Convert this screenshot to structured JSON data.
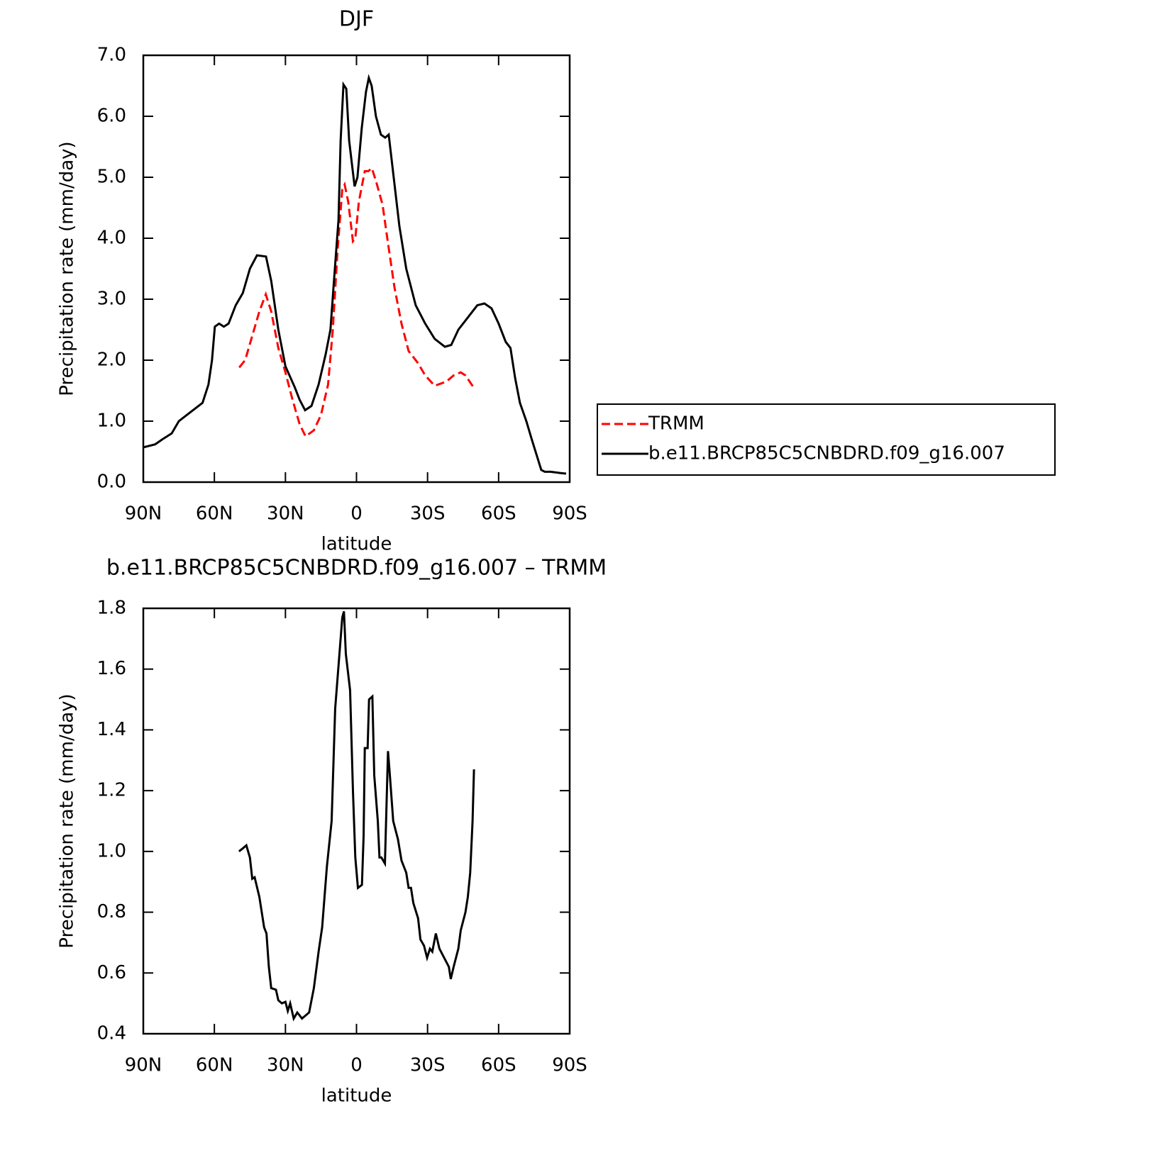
{
  "chart_data": [
    {
      "type": "line",
      "title": "DJF",
      "xlabel": "latitude",
      "ylabel": "Precipitation rate (mm/day)",
      "xlim": [
        90,
        -90
      ],
      "xticks": [
        {
          "value": 90,
          "label": "90N"
        },
        {
          "value": 60,
          "label": "60N"
        },
        {
          "value": 30,
          "label": "30N"
        },
        0,
        {
          "value": -30,
          "label": "30S"
        },
        {
          "value": -60,
          "label": "60S"
        },
        {
          "value": -90,
          "label": "90S"
        }
      ],
      "ylim": [
        0,
        7
      ],
      "yticks": [
        {
          "value": 0,
          "label": "0.0"
        },
        {
          "value": 1,
          "label": "1.0"
        },
        {
          "value": 2,
          "label": "2.0"
        },
        {
          "value": 3,
          "label": "3.0"
        },
        {
          "value": 4,
          "label": "4.0"
        },
        {
          "value": 5,
          "label": "5.0"
        },
        {
          "value": 6,
          "label": "6.0"
        },
        {
          "value": 7,
          "label": "7.0"
        }
      ],
      "legend": "right",
      "series": [
        {
          "name": "TRMM",
          "color": "#ff0000",
          "dash": true,
          "x": [
            49.5,
            47,
            44,
            41,
            38.3,
            36,
            33,
            30,
            27,
            24,
            21.5,
            18,
            15,
            12,
            10,
            8,
            6,
            5,
            3.5,
            1.5,
            0.5,
            -1,
            -3.5,
            -5,
            -6.5,
            -8.5,
            -11,
            -13,
            -16,
            -19,
            -22,
            -26,
            -29,
            -33,
            -38,
            -41,
            -44,
            -46,
            -49.5
          ],
          "values": [
            1.88,
            2.0,
            2.4,
            2.8,
            3.08,
            2.8,
            2.2,
            1.8,
            1.35,
            0.95,
            0.75,
            0.85,
            1.1,
            1.6,
            2.5,
            3.8,
            4.8,
            4.88,
            4.6,
            3.95,
            4.0,
            4.6,
            5.1,
            5.1,
            5.15,
            4.9,
            4.55,
            4.0,
            3.2,
            2.6,
            2.15,
            1.95,
            1.75,
            1.58,
            1.65,
            1.75,
            1.8,
            1.75,
            1.55
          ]
        },
        {
          "name": "b.e11.BRCP85C5CNBDRD.f09_g16.007",
          "color": "#000000",
          "dash": false,
          "x": [
            90,
            85,
            82,
            78,
            75,
            70,
            65,
            62.5,
            61,
            59.8,
            58,
            56,
            54,
            51,
            48,
            45,
            42,
            38.2,
            36,
            33,
            30,
            26,
            24,
            21.7,
            19,
            16,
            13,
            11,
            9.7,
            7.6,
            6.7,
            5.5,
            4.3,
            3.1,
            0.8,
            -0.4,
            -2.2,
            -4,
            -5.2,
            -6.4,
            -8.2,
            -10.3,
            -12.1,
            -13.6,
            -15.7,
            -18.1,
            -21,
            -25,
            -29,
            -33,
            -37.3,
            -40,
            -43,
            -47,
            -51,
            -54,
            -57,
            -60,
            -63,
            -65,
            -67,
            -69,
            -71.7,
            -74,
            -76,
            -78,
            -79.5,
            -82,
            -86,
            -88.5
          ],
          "values": [
            0.57,
            0.62,
            0.7,
            0.8,
            1.0,
            1.15,
            1.3,
            1.6,
            2.0,
            2.55,
            2.6,
            2.55,
            2.6,
            2.9,
            3.1,
            3.5,
            3.72,
            3.7,
            3.3,
            2.5,
            1.9,
            1.55,
            1.35,
            1.18,
            1.25,
            1.6,
            2.1,
            2.5,
            3.2,
            4.3,
            5.6,
            6.52,
            6.45,
            5.6,
            4.85,
            5.0,
            5.8,
            6.4,
            6.63,
            6.5,
            6.0,
            5.7,
            5.65,
            5.7,
            5.0,
            4.2,
            3.5,
            2.9,
            2.6,
            2.35,
            2.22,
            2.25,
            2.5,
            2.7,
            2.9,
            2.93,
            2.85,
            2.6,
            2.3,
            2.2,
            1.7,
            1.3,
            1.0,
            0.7,
            0.45,
            0.2,
            0.17,
            0.17,
            0.15,
            0.14
          ]
        }
      ]
    },
    {
      "type": "line",
      "title": "b.e11.BRCP85C5CNBDRD.f09_g16.007 – TRMM",
      "xlabel": "latitude",
      "ylabel": "Precipitation rate (mm/day)",
      "xlim": [
        90,
        -90
      ],
      "xticks": [
        {
          "value": 90,
          "label": "90N"
        },
        {
          "value": 60,
          "label": "60N"
        },
        {
          "value": 30,
          "label": "30N"
        },
        0,
        {
          "value": -30,
          "label": "30S"
        },
        {
          "value": -60,
          "label": "60S"
        },
        {
          "value": -90,
          "label": "90S"
        }
      ],
      "ylim": [
        0.4,
        1.8
      ],
      "yticks": [
        0.4,
        0.6,
        0.8,
        {
          "value": 1,
          "label": "1.0"
        },
        1.2,
        1.4,
        1.6,
        1.8
      ],
      "series": [
        {
          "color": "#000000",
          "dash": false,
          "x": [
            49.6,
            48,
            46.5,
            45,
            44,
            43,
            41,
            39,
            38,
            37,
            36,
            34,
            33,
            31.5,
            30,
            29,
            28,
            26.5,
            25,
            23,
            21.5,
            20,
            18,
            16,
            14.5,
            12.5,
            10.5,
            9,
            7.5,
            6,
            5.3,
            4.5,
            2.7,
            1.5,
            0.5,
            -0.6,
            -2.3,
            -3,
            -3.5,
            -4.7,
            -5.3,
            -6.7,
            -7.5,
            -9,
            -9.7,
            -10.5,
            -12,
            -13.3,
            -14,
            -15.5,
            -17.5,
            -19,
            -21,
            -22,
            -23,
            -24,
            -26,
            -27,
            -28.5,
            -29.8,
            -31,
            -32,
            -33.5,
            -35,
            -37,
            -39,
            -39.8,
            -41,
            -43,
            -44,
            -46,
            -47,
            -48,
            -49,
            -49.6
          ],
          "values": [
            1.0,
            1.01,
            1.02,
            0.98,
            0.91,
            0.915,
            0.85,
            0.75,
            0.73,
            0.62,
            0.55,
            0.545,
            0.51,
            0.5,
            0.505,
            0.475,
            0.5,
            0.45,
            0.47,
            0.45,
            0.46,
            0.47,
            0.55,
            0.67,
            0.75,
            0.95,
            1.1,
            1.47,
            1.62,
            1.77,
            1.79,
            1.65,
            1.53,
            1.2,
            0.98,
            0.88,
            0.89,
            1.05,
            1.34,
            1.34,
            1.5,
            1.51,
            1.25,
            1.1,
            0.98,
            0.98,
            0.96,
            1.33,
            1.26,
            1.1,
            1.04,
            0.97,
            0.93,
            0.88,
            0.88,
            0.83,
            0.78,
            0.71,
            0.69,
            0.65,
            0.68,
            0.67,
            0.73,
            0.68,
            0.65,
            0.62,
            0.58,
            0.62,
            0.68,
            0.74,
            0.8,
            0.85,
            0.93,
            1.1,
            1.27
          ]
        }
      ]
    }
  ]
}
